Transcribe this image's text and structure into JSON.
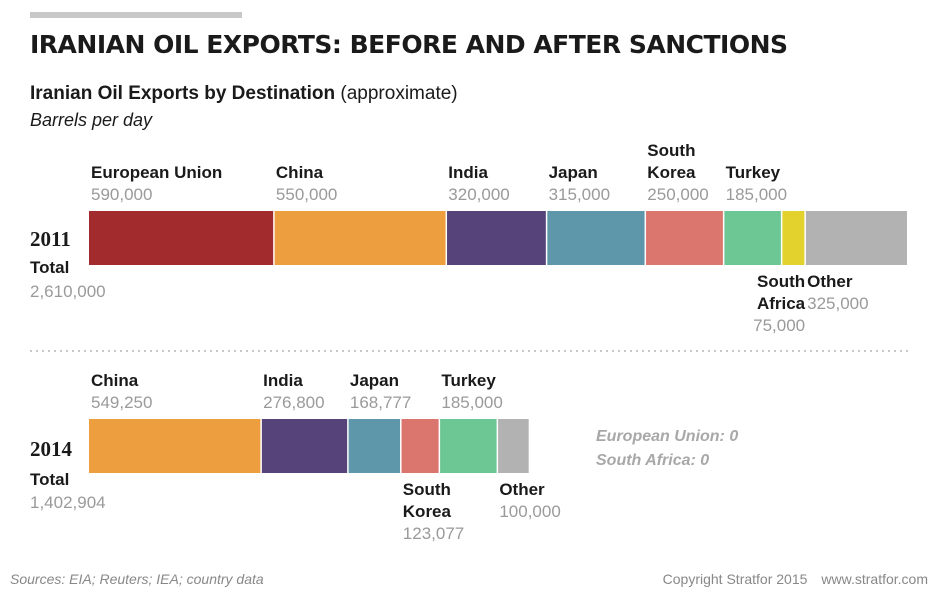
{
  "header": {
    "title": "IRANIAN OIL EXPORTS: BEFORE AND AFTER SANCTIONS",
    "subtitle_bold": "Iranian Oil Exports by Destination",
    "subtitle_note": "(approximate)",
    "unit": "Barrels per day"
  },
  "chart_data": {
    "type": "bar",
    "orientation": "horizontal-stacked",
    "unit": "Barrels per day",
    "total_label": "Total",
    "series": [
      {
        "year": "2011",
        "total": "2,610,000",
        "segments": [
          {
            "name": "European Union",
            "label": [
              "European Union"
            ],
            "value": 590000,
            "value_label": "590,000",
            "color": "#a22b2e",
            "label_pos": "above"
          },
          {
            "name": "China",
            "label": [
              "China"
            ],
            "value": 550000,
            "value_label": "550,000",
            "color": "#ed9e3e",
            "label_pos": "above"
          },
          {
            "name": "India",
            "label": [
              "India"
            ],
            "value": 320000,
            "value_label": "320,000",
            "color": "#55437a",
            "label_pos": "above"
          },
          {
            "name": "Japan",
            "label": [
              "Japan"
            ],
            "value": 315000,
            "value_label": "315,000",
            "color": "#5d97a9",
            "label_pos": "above"
          },
          {
            "name": "South Korea",
            "label": [
              "South",
              "Korea"
            ],
            "value": 250000,
            "value_label": "250,000",
            "color": "#db766f",
            "label_pos": "above"
          },
          {
            "name": "Turkey",
            "label": [
              "Turkey"
            ],
            "value": 185000,
            "value_label": "185,000",
            "color": "#6dc794",
            "label_pos": "above"
          },
          {
            "name": "South Africa",
            "label": [
              "South",
              "Africa"
            ],
            "value": 75000,
            "value_label": "75,000",
            "color": "#e3d22e",
            "label_pos": "below-right-aligned"
          },
          {
            "name": "Other",
            "label": [
              "Other"
            ],
            "value": 325000,
            "value_label": "325,000",
            "color": "#b2b2b2",
            "label_pos": "below"
          }
        ]
      },
      {
        "year": "2014",
        "total": "1,402,904",
        "segments": [
          {
            "name": "China",
            "label": [
              "China"
            ],
            "value": 549250,
            "value_label": "549,250",
            "color": "#ed9e3e",
            "label_pos": "above"
          },
          {
            "name": "India",
            "label": [
              "India"
            ],
            "value": 276800,
            "value_label": "276,800",
            "color": "#55437a",
            "label_pos": "above"
          },
          {
            "name": "Japan",
            "label": [
              "Japan"
            ],
            "value": 168777,
            "value_label": "168,777",
            "color": "#5d97a9",
            "label_pos": "above"
          },
          {
            "name": "South Korea",
            "label": [
              "South",
              "Korea"
            ],
            "value": 123077,
            "value_label": "123,077",
            "color": "#db766f",
            "label_pos": "below"
          },
          {
            "name": "Turkey",
            "label": [
              "Turkey"
            ],
            "value": 185000,
            "value_label": "185,000",
            "color": "#6dc794",
            "label_pos": "above"
          },
          {
            "name": "Other",
            "label": [
              "Other"
            ],
            "value": 100000,
            "value_label": "100,000",
            "color": "#b2b2b2",
            "label_pos": "below"
          }
        ],
        "zero_entries": [
          "European Union: 0",
          "South Africa: 0"
        ]
      }
    ]
  },
  "footer": {
    "sources": "Sources: EIA; Reuters; IEA; country data",
    "copyright": "Copyright Stratfor 2015",
    "website": "www.stratfor.com"
  }
}
